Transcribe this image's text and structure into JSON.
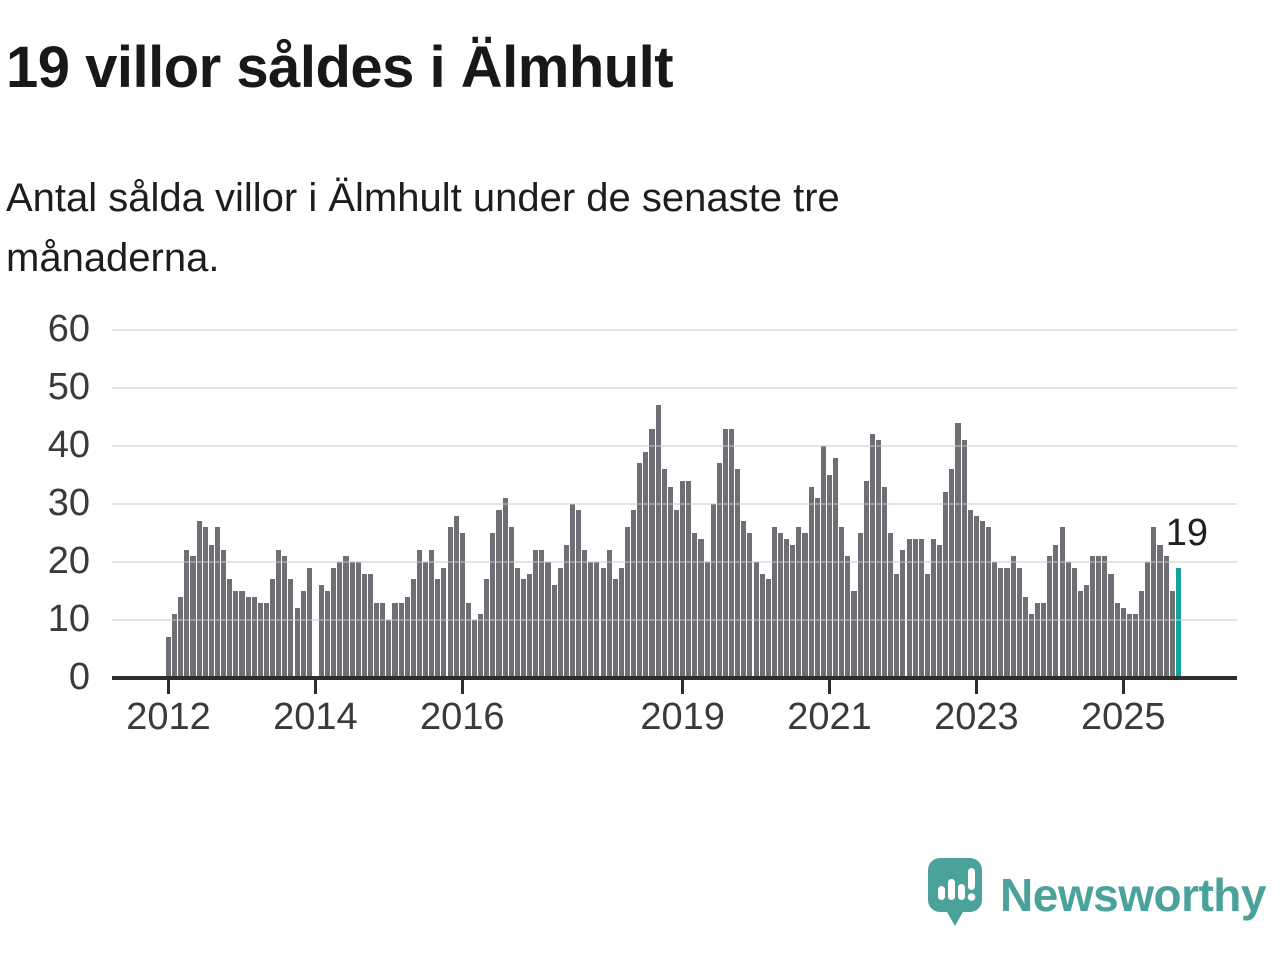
{
  "header": {
    "title": "19 villor såldes i Älmhult",
    "subtitle_line1": "Antal sålda villor i Älmhult under de senaste tre",
    "subtitle_line2": "månaderna."
  },
  "chart_data": {
    "type": "bar",
    "title": "19 villor såldes i Älmhult",
    "subtitle": "Antal sålda villor i Älmhult under de senaste tre månaderna.",
    "xlabel": "",
    "ylabel": "",
    "ylim": [
      0,
      60
    ],
    "grid": "horizontal",
    "y_ticks": [
      0,
      10,
      20,
      30,
      40,
      50,
      60
    ],
    "x_ticks": [
      {
        "label": "2012",
        "index": 0
      },
      {
        "label": "2014",
        "index": 24
      },
      {
        "label": "2016",
        "index": 48
      },
      {
        "label": "2019",
        "index": 84
      },
      {
        "label": "2021",
        "index": 108
      },
      {
        "label": "2023",
        "index": 132
      },
      {
        "label": "2025",
        "index": 156
      }
    ],
    "series_note": "rolling 3-month sum of houses sold, monthly bars 2012 - 2025",
    "values": [
      7,
      11,
      14,
      22,
      21,
      27,
      26,
      23,
      26,
      22,
      17,
      15,
      15,
      14,
      14,
      13,
      13,
      17,
      22,
      21,
      17,
      12,
      15,
      19,
      0,
      16,
      15,
      19,
      20,
      21,
      20,
      20,
      18,
      18,
      13,
      13,
      10,
      13,
      13,
      14,
      17,
      22,
      20,
      22,
      17,
      19,
      26,
      28,
      25,
      13,
      10,
      11,
      17,
      25,
      29,
      31,
      26,
      19,
      17,
      18,
      22,
      22,
      20,
      16,
      19,
      23,
      30,
      29,
      22,
      20,
      20,
      19,
      22,
      17,
      19,
      26,
      29,
      37,
      39,
      43,
      47,
      36,
      33,
      29,
      34,
      34,
      25,
      24,
      20,
      30,
      37,
      43,
      43,
      36,
      27,
      25,
      20,
      18,
      17,
      26,
      25,
      24,
      23,
      26,
      25,
      33,
      31,
      40,
      35,
      38,
      26,
      21,
      15,
      25,
      34,
      42,
      41,
      33,
      25,
      18,
      22,
      24,
      24,
      24,
      18,
      24,
      23,
      32,
      36,
      44,
      41,
      29,
      28,
      27,
      26,
      20,
      19,
      19,
      21,
      19,
      14,
      11,
      13,
      13,
      21,
      23,
      26,
      20,
      19,
      15,
      16,
      21,
      21,
      21,
      18,
      13,
      12,
      11,
      11,
      15,
      20,
      26,
      23,
      21,
      15,
      19
    ],
    "highlight": {
      "index_from_end": 1,
      "value": 19,
      "label": "19",
      "color": "#16a29c"
    },
    "colors": {
      "bar": "#6e6e75",
      "highlight_bar": "#16a29c",
      "gridline": "#d9d9d9",
      "axis": "#2d2d2d",
      "tick_text": "#3a3a3a",
      "annotation_text": "#1f1f1f"
    }
  },
  "logo": {
    "name": "Newsworthy",
    "text": "Newsworthy",
    "color": "#4ba29b"
  }
}
